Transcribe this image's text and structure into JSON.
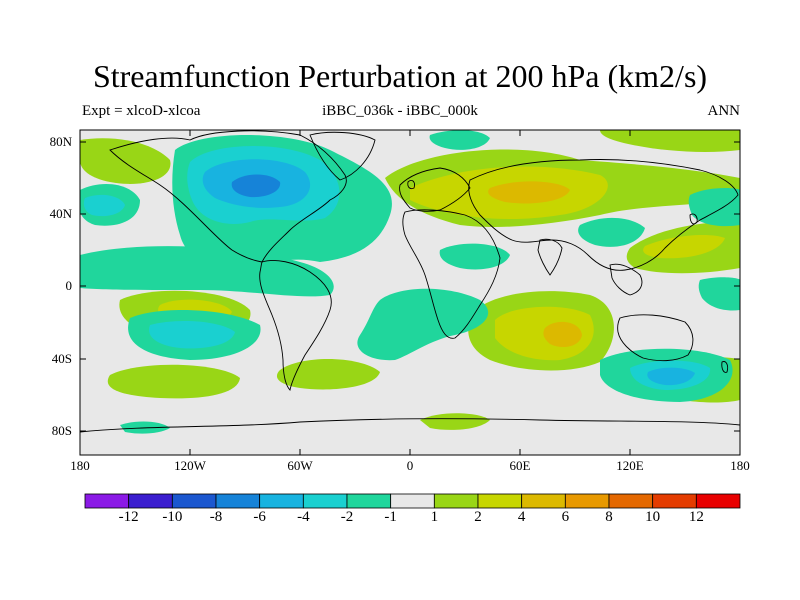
{
  "title": "Streamfunction Perturbation at 200 hPa (km2/s)",
  "subtitle_left": "Expt = xlcoD-xlcoa",
  "subtitle_center": "iBBC_036k - iBBC_000k",
  "subtitle_right": "ANN",
  "lat_labels": [
    "80N",
    "40N",
    "0",
    "40S",
    "80S"
  ],
  "lon_labels": [
    "180",
    "120W",
    "60W",
    "0",
    "60E",
    "120E",
    "180"
  ],
  "colorbar": {
    "labels": [
      "-12",
      "-10",
      "-8",
      "-6",
      "-4",
      "-2",
      "-1",
      "1",
      "2",
      "4",
      "6",
      "8",
      "10",
      "12"
    ],
    "colors": [
      "#8b1ae6",
      "#3b1ecf",
      "#1b57cf",
      "#1683d8",
      "#18b3e0",
      "#1ad0d0",
      "#20d69c",
      "#e8e8e8",
      "#99d616",
      "#c7d600",
      "#dcb900",
      "#e89900",
      "#e46800",
      "#e43c00",
      "#e80000"
    ]
  },
  "colors": {
    "background": "#e8e8e8",
    "pos1": "#99d616",
    "pos2": "#c7d600",
    "pos3": "#dcb900",
    "neg1": "#20d69c",
    "neg2": "#1ad0d0",
    "neg3": "#18b3e0",
    "neg4": "#1683d8"
  }
}
